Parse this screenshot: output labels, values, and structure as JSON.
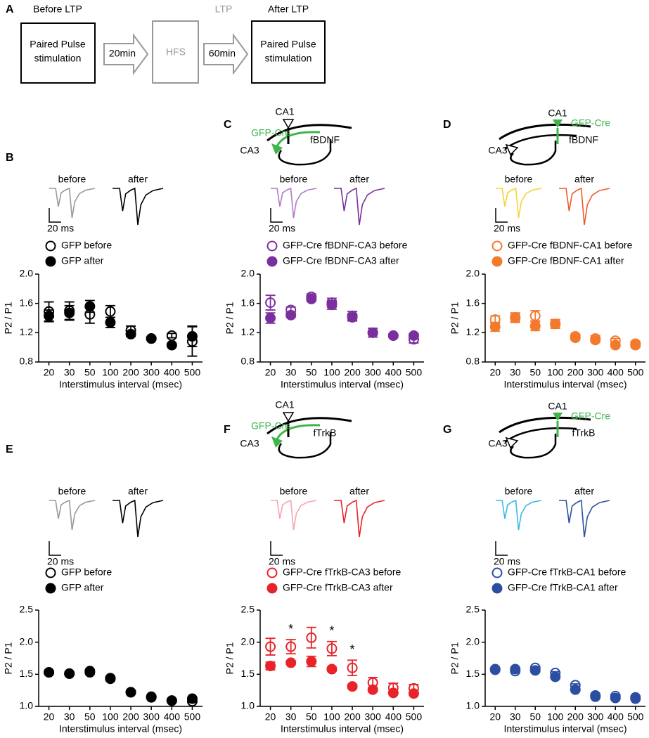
{
  "diagram": {
    "panel": "A",
    "before_heading": "Before LTP",
    "before_lines": [
      "Paired Pulse",
      "stimulation"
    ],
    "arrow1": "20min",
    "hfs": "HFS",
    "ltp_heading": "LTP",
    "arrow2": "60min",
    "after_heading": "After LTP",
    "after_lines": [
      "Paired Pulse",
      "stimulation"
    ]
  },
  "chart_data": [
    {
      "type": "dot",
      "panel": "B",
      "trace_labels": [
        "before",
        "after"
      ],
      "trace_colors": [
        "#999999",
        "#000000"
      ],
      "scale_label": "20 ms",
      "xlabel": "Interstimulus interval (msec)",
      "ylabel": "P2 / P1",
      "categories": [
        "20",
        "30",
        "50",
        "100",
        "200",
        "300",
        "400",
        "500"
      ],
      "ylim": [
        0.8,
        2.0
      ],
      "yticks": [
        0.8,
        1.2,
        1.6,
        {
          "value": 2.0,
          "label": "2.0"
        }
      ],
      "series": [
        {
          "name": "GFP before",
          "color": "#000000",
          "filled": false,
          "values": [
            1.49,
            1.5,
            1.45,
            1.49,
            1.23,
            1.12,
            1.16,
            1.08
          ],
          "errors": [
            0.13,
            0.12,
            0.12,
            0.08,
            0.06,
            0.01,
            0.03,
            0.2
          ]
        },
        {
          "name": "GFP after",
          "color": "#000000",
          "filled": true,
          "values": [
            1.43,
            1.47,
            1.56,
            1.34,
            1.18,
            1.12,
            1.03,
            1.15
          ],
          "errors": [
            0.08,
            0.1,
            0.08,
            0.07,
            0.03,
            0.02,
            0.02,
            0.14
          ]
        }
      ]
    },
    {
      "type": "dot",
      "panel": "C",
      "schematic": [
        "CA1",
        "GFP-Cre",
        "CA3",
        "fBDNF"
      ],
      "trace_labels": [
        "before",
        "after"
      ],
      "trace_colors": [
        "#b07cc6",
        "#7b2f9e"
      ],
      "scale_label": "20 ms",
      "xlabel": "Interstimulus interval (msec)",
      "ylabel": "P2 / P1",
      "categories": [
        "20",
        "30",
        "50",
        "100",
        "200",
        "300",
        "400",
        "500"
      ],
      "ylim": [
        0.8,
        2.0
      ],
      "yticks": [
        0.8,
        1.2,
        1.6,
        {
          "value": 2.0,
          "label": "2.0"
        }
      ],
      "series": [
        {
          "name": "GFP-Cre fBDNF-CA3 before",
          "color": "#7b2f9e",
          "filled": false,
          "values": [
            1.61,
            1.51,
            1.69,
            1.61,
            1.43,
            1.2,
            1.16,
            1.11
          ],
          "errors": [
            0.1,
            0.04,
            0.04,
            0.06,
            0.06,
            0.06,
            0.02,
            0.05
          ]
        },
        {
          "name": "GFP-Cre fBDNF-CA3 after",
          "color": "#7b2f9e",
          "filled": true,
          "values": [
            1.4,
            1.44,
            1.66,
            1.58,
            1.41,
            1.2,
            1.16,
            1.16
          ],
          "errors": [
            0.07,
            0.03,
            0.03,
            0.06,
            0.05,
            0.03,
            0.02,
            0.03
          ]
        }
      ]
    },
    {
      "type": "dot",
      "panel": "D",
      "schematic": [
        "CA1",
        "GFP-Cre",
        "CA3",
        "fBDNF"
      ],
      "trace_labels": [
        "before",
        "after"
      ],
      "trace_colors": [
        "#f6d33a",
        "#f05a28"
      ],
      "scale_label": "20 ms",
      "xlabel": "Interstimulus interval (msec)",
      "ylabel": "P2 / P1",
      "categories": [
        "20",
        "30",
        "50",
        "100",
        "200",
        "300",
        "400",
        "500"
      ],
      "ylim": [
        0.8,
        2.0
      ],
      "yticks": [
        0.8,
        1.2,
        1.6,
        {
          "value": 2.0,
          "label": "2.0"
        }
      ],
      "series": [
        {
          "name": "GFP-Cre fBDNF-CA1 before",
          "color": "#f37a2c",
          "filled": false,
          "values": [
            1.38,
            1.41,
            1.43,
            1.32,
            1.15,
            1.12,
            1.09,
            1.05
          ],
          "errors": [
            0.05,
            0.06,
            0.07,
            0.06,
            0.03,
            0.04,
            0.03,
            0.03
          ]
        },
        {
          "name": "GFP-Cre fBDNF-CA1 after",
          "color": "#f37a2c",
          "filled": true,
          "values": [
            1.28,
            1.4,
            1.29,
            1.32,
            1.13,
            1.1,
            1.03,
            1.03
          ],
          "errors": [
            0.06,
            0.06,
            0.06,
            0.04,
            0.03,
            0.03,
            0.02,
            0.03
          ]
        }
      ]
    },
    {
      "type": "dot",
      "panel": "E",
      "trace_labels": [
        "before",
        "after"
      ],
      "trace_colors": [
        "#999999",
        "#000000"
      ],
      "scale_label": "20 ms",
      "xlabel": "Interstimulus interval (msec)",
      "ylabel": "P2 / P1",
      "categories": [
        "20",
        "30",
        "50",
        "100",
        "200",
        "300",
        "400",
        "500"
      ],
      "ylim": [
        1.0,
        2.5
      ],
      "yticks": [
        {
          "value": 1.0,
          "label": "1.0"
        },
        1.5,
        {
          "value": 2.0,
          "label": "2.0"
        },
        2.5
      ],
      "series": [
        {
          "name": "GFP before",
          "color": "#000000",
          "filled": false,
          "values": [
            1.53,
            1.51,
            1.53,
            1.43,
            1.22,
            1.14,
            1.09,
            1.08
          ],
          "errors": [
            0.02,
            0.02,
            0.02,
            0.02,
            0.02,
            0.02,
            0.02,
            0.02
          ]
        },
        {
          "name": "GFP after",
          "color": "#000000",
          "filled": true,
          "values": [
            1.53,
            1.51,
            1.55,
            1.44,
            1.22,
            1.15,
            1.09,
            1.12
          ],
          "errors": [
            0.02,
            0.02,
            0.02,
            0.02,
            0.02,
            0.02,
            0.02,
            0.02
          ]
        }
      ]
    },
    {
      "type": "dot",
      "panel": "F",
      "schematic": [
        "CA1",
        "GFP-Cre",
        "CA3",
        "fTrkB"
      ],
      "trace_labels": [
        "before",
        "after"
      ],
      "trace_colors": [
        "#f4a6ae",
        "#e8232a"
      ],
      "scale_label": "20 ms",
      "xlabel": "Interstimulus interval (msec)",
      "ylabel": "P2 / P1",
      "categories": [
        "20",
        "30",
        "50",
        "100",
        "200",
        "300",
        "400",
        "500"
      ],
      "ylim": [
        1.0,
        2.5
      ],
      "yticks": [
        {
          "value": 1.0,
          "label": "1.0"
        },
        1.5,
        {
          "value": 2.0,
          "label": "2.0"
        },
        2.5
      ],
      "annotations": [
        {
          "text": "*",
          "x": "30"
        },
        {
          "text": "*",
          "x": "100"
        },
        {
          "text": "*",
          "x": "200"
        }
      ],
      "series": [
        {
          "name": "GFP-Cre fTrkB-CA3 before",
          "color": "#e8232a",
          "filled": false,
          "values": [
            1.93,
            1.93,
            2.07,
            1.9,
            1.6,
            1.37,
            1.29,
            1.28
          ],
          "errors": [
            0.13,
            0.11,
            0.16,
            0.11,
            0.12,
            0.08,
            0.07,
            0.06
          ]
        },
        {
          "name": "GFP-Cre fTrkB-CA3 after",
          "color": "#e8232a",
          "filled": true,
          "values": [
            1.63,
            1.68,
            1.7,
            1.58,
            1.31,
            1.26,
            1.21,
            1.2
          ],
          "errors": [
            0.06,
            0.03,
            0.08,
            0.03,
            0.03,
            0.03,
            0.02,
            0.02
          ]
        }
      ]
    },
    {
      "type": "dot",
      "panel": "G",
      "schematic": [
        "CA1",
        "GFP-Cre",
        "CA3",
        "fTrkB"
      ],
      "trace_labels": [
        "before",
        "after"
      ],
      "trace_colors": [
        "#3bb8e6",
        "#2c4ea2"
      ],
      "scale_label": "20 ms",
      "xlabel": "Interstimulus interval (msec)",
      "ylabel": "P2 / P1",
      "categories": [
        "20",
        "30",
        "50",
        "100",
        "200",
        "300",
        "400",
        "500"
      ],
      "ylim": [
        1.0,
        2.5
      ],
      "yticks": [
        {
          "value": 1.0,
          "label": "1.0"
        },
        1.5,
        {
          "value": 2.0,
          "label": "2.0"
        },
        2.5
      ],
      "series": [
        {
          "name": "GFP-Cre fTrkB-CA1 before",
          "color": "#2c4ea2",
          "filled": false,
          "values": [
            1.58,
            1.55,
            1.6,
            1.52,
            1.33,
            1.17,
            1.16,
            1.12
          ],
          "errors": [
            0.02,
            0.02,
            0.02,
            0.02,
            0.02,
            0.02,
            0.02,
            0.02
          ]
        },
        {
          "name": "GFP-Cre fTrkB-CA1 after",
          "color": "#2c4ea2",
          "filled": true,
          "values": [
            1.57,
            1.58,
            1.56,
            1.46,
            1.26,
            1.15,
            1.13,
            1.14
          ],
          "errors": [
            0.02,
            0.02,
            0.02,
            0.02,
            0.02,
            0.02,
            0.02,
            0.02
          ]
        }
      ]
    }
  ]
}
